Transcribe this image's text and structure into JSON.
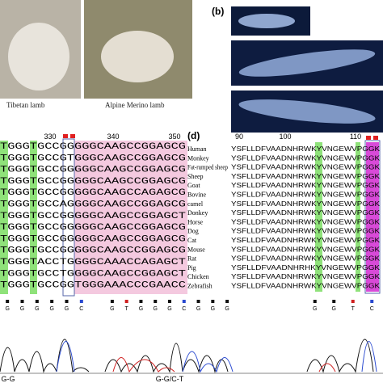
{
  "panel_a": {
    "captions": [
      "Tibetan lamb",
      "Alpine Merino lamb"
    ]
  },
  "panel_b": {
    "label": "(b)"
  },
  "panel_c": {
    "positions": [
      "330",
      "340",
      "350"
    ],
    "sequences": [
      "TGGGTGCCGGGGGCAAGCCGGAGCG",
      "TGGGTGCCGTGGGCAAGCCGGAGCG",
      "TGGGTGCCGGGGGCAAGCCGGAGCG",
      "TGGGTGCCGGGGGCAAGCCGGAGCG",
      "TGGGTGCCGGGGGCAAGCCAGAGCG",
      "TGGGTGCCAGGGGCAAGCCGGAGCG",
      "TGGGTGCCGGGGGCAAGCCGGAGCT",
      "TGGGTGCCGGGGGCAAGCCGGAGCG",
      "TGGGTGCCGGGGGCAAGCCGGAGCG",
      "TGGGTGCCGGGGGCAAGCCGGAGCG",
      "TGGGTACCTGGGGCAAACCAGAGCT",
      "TGGGTGCCTGGGGCAAGCCGGAGCT",
      "TGGGTGCCGGTGGGAAACCCGAACC"
    ]
  },
  "panel_d": {
    "label": "(d)",
    "positions": [
      "90",
      "100",
      "110"
    ],
    "species": [
      "Human",
      "Monkey",
      "Fat-rumped sheep",
      "Sheep",
      "Goat",
      "Bovine",
      "camel",
      "Donkey",
      "Horse",
      "Dog",
      "Cat",
      "Mouse",
      "Rat",
      "Pig",
      "Chicken",
      "Zebrafish"
    ],
    "sequences": [
      "YSFLLDFVAADNHRWKYVNGEWVPGGK",
      "YSFLLDFVAADNHRWKYVNGEWVPGGK",
      "YSFLLDFVAADNHRWKYVNGEWVPGGK",
      "YSFLLDFVAADNHRWKYVNGEWVPGGK",
      "YSFLLDFVAADNHRWKYVNGEWVPGGK",
      "YSFLLDFVAADNHRWKYVNGEWVPGGK",
      "YSFLLDFVAADNHRWKYVNGEWVPGGK",
      "YSFLLDFVAADNHRWKYVNGEWVPGGK",
      "YSFLLDFVAADNHRWKYVNGEWVPGGK",
      "YSFLLDFVAADNHRWKYVNGEWVPGGK",
      "YSFLLDFVAADNHRWKYVNGEWVPGGK",
      "YSFLLDFVAADNHRWKYVNGEWVPGGK",
      "YSFLLDFVAADNHRWKYVNGEWVPGGK",
      "YSFLLDFVAADNHRHKYVNGEWVPGGK",
      "YSFLLDFVAADNHRWKYVNGEWVPGGK",
      "YSFLLDFVAADNHRWKYVNGEWVPGGK"
    ]
  },
  "panel_e": {
    "traces": [
      {
        "bases": [
          "G",
          "G",
          "G",
          "G",
          "G",
          "C"
        ],
        "label": "G-G"
      },
      {
        "bases": [
          "G",
          "T",
          "G",
          "G",
          "G",
          "C",
          "G",
          "G",
          "G"
        ],
        "label": "G-G/C-T"
      },
      {
        "bases": [
          "G",
          "G",
          "T",
          "C"
        ]
      }
    ]
  }
}
